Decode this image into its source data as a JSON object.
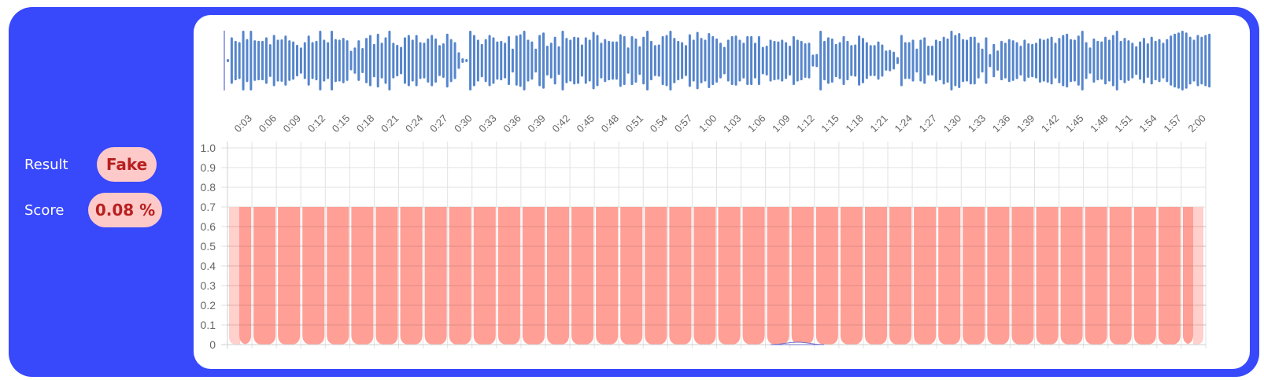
{
  "summary": {
    "result_label": "Result",
    "result_value": "Fake",
    "score_label": "Score",
    "score_value": "0.08 %"
  },
  "colors": {
    "frame": "#3848fb",
    "pill_bg": "#fdc9c9",
    "pill_text": "#b81f1f",
    "waveform": "#5585cc",
    "bar_fill": "#ff9a90",
    "bar_edge_fill": "#ffd0cc"
  },
  "waveform": {
    "amplitudes": [
      0.05,
      0.78,
      0.66,
      0.62,
      1.0,
      0.72,
      1.0,
      0.68,
      0.66,
      0.66,
      0.78,
      0.55,
      0.86,
      0.7,
      0.71,
      0.84,
      0.68,
      0.64,
      0.53,
      0.44,
      0.62,
      0.84,
      0.62,
      0.66,
      1.0,
      0.7,
      0.62,
      1.0,
      0.72,
      0.7,
      0.76,
      0.68,
      0.33,
      0.44,
      0.68,
      0.42,
      0.76,
      0.86,
      0.56,
      0.9,
      0.6,
      0.78,
      1.0,
      0.6,
      0.53,
      0.46,
      0.78,
      0.86,
      0.7,
      0.86,
      0.62,
      0.6,
      0.74,
      0.86,
      0.74,
      0.52,
      0.58,
      0.9,
      0.72,
      0.62,
      0.28,
      0.08,
      0.05,
      1.0,
      0.86,
      0.7,
      0.56,
      0.72,
      0.86,
      0.78,
      0.64,
      0.66,
      0.6,
      0.82,
      0.4,
      0.84,
      0.88,
      1.0,
      0.7,
      0.64,
      0.4,
      0.86,
      0.94,
      0.5,
      0.6,
      0.8,
      0.48,
      1.0,
      0.76,
      0.7,
      0.8,
      0.78,
      0.54,
      0.78,
      0.7,
      0.96,
      0.86,
      0.6,
      0.72,
      0.66,
      0.64,
      0.64,
      0.88,
      0.82,
      0.44,
      0.82,
      0.74,
      0.48,
      0.8,
      1.0,
      0.66,
      0.52,
      0.54,
      0.82,
      0.86,
      1.0,
      0.76,
      0.66,
      0.62,
      0.52,
      0.88,
      0.7,
      0.96,
      0.76,
      0.7,
      0.92,
      0.82,
      0.74,
      0.6,
      0.46,
      0.7,
      0.82,
      0.84,
      0.7,
      0.6,
      0.82,
      0.82,
      0.6,
      0.82,
      0.46,
      0.5,
      0.7,
      0.66,
      0.64,
      0.7,
      0.62,
      0.5,
      0.82,
      0.7,
      0.66,
      0.58,
      0.6,
      0.2,
      0.22,
      1.0,
      0.66,
      0.78,
      0.74,
      0.56,
      0.62,
      0.82,
      0.66,
      0.52,
      0.54,
      0.84,
      0.76,
      0.62,
      0.52,
      0.52,
      0.64,
      0.54,
      0.34,
      0.36,
      0.3,
      0.12,
      0.86,
      0.62,
      0.62,
      0.7,
      0.4,
      0.7,
      0.78,
      0.5,
      0.5,
      0.7,
      0.66,
      0.8,
      0.74,
      1.0,
      0.86,
      0.92,
      0.72,
      0.7,
      0.8,
      0.8,
      0.6,
      0.4,
      0.78,
      0.22,
      0.56,
      0.34,
      0.66,
      0.6,
      0.72,
      0.68,
      0.62,
      0.5,
      0.7,
      0.58,
      0.56,
      0.6,
      0.74,
      0.7,
      0.74,
      0.8,
      0.6,
      0.76,
      0.86,
      0.9,
      0.72,
      0.7,
      0.84,
      1.0,
      0.62,
      0.44,
      0.74,
      0.66,
      0.64,
      0.8,
      0.7,
      0.86,
      1.0,
      0.66,
      0.76,
      0.68,
      0.6,
      0.48,
      0.64,
      0.76,
      0.58,
      0.8,
      0.66,
      0.72,
      0.6,
      0.72,
      0.84,
      0.9,
      0.94,
      1.0,
      0.94,
      0.8,
      0.7,
      0.86,
      0.8,
      0.86,
      0.9
    ]
  },
  "chart_data": {
    "type": "bar",
    "title": "",
    "xlabel": "",
    "ylabel": "",
    "ylim": [
      0,
      1.0
    ],
    "yticks": [
      "1.0",
      "0.9",
      "0.8",
      "0.7",
      "0.6",
      "0.5",
      "0.4",
      "0.3",
      "0.2",
      "0.1",
      "0"
    ],
    "grid": true,
    "categories": [
      "0:03",
      "0:06",
      "0:09",
      "0:12",
      "0:15",
      "0:18",
      "0:21",
      "0:24",
      "0:27",
      "0:30",
      "0:33",
      "0:36",
      "0:39",
      "0:42",
      "0:45",
      "0:48",
      "0:51",
      "0:54",
      "0:57",
      "1:00",
      "1:03",
      "1:06",
      "1:09",
      "1:12",
      "1:15",
      "1:18",
      "1:21",
      "1:24",
      "1:27",
      "1:30",
      "1:33",
      "1:36",
      "1:39",
      "1:42",
      "1:45",
      "1:48",
      "1:51",
      "1:54",
      "1:57",
      "2:00"
    ],
    "values": [
      0.7,
      0.7,
      0.7,
      0.7,
      0.7,
      0.7,
      0.7,
      0.7,
      0.7,
      0.7,
      0.7,
      0.7,
      0.7,
      0.7,
      0.7,
      0.7,
      0.7,
      0.7,
      0.7,
      0.7,
      0.7,
      0.7,
      0.7,
      0.7,
      0.7,
      0.7,
      0.7,
      0.7,
      0.7,
      0.7,
      0.7,
      0.7,
      0.7,
      0.7,
      0.7,
      0.7,
      0.7,
      0.7,
      0.7,
      0.7
    ],
    "score_line": {
      "description": "near-zero line with small bump around 1:12",
      "peak": 0.02
    }
  }
}
